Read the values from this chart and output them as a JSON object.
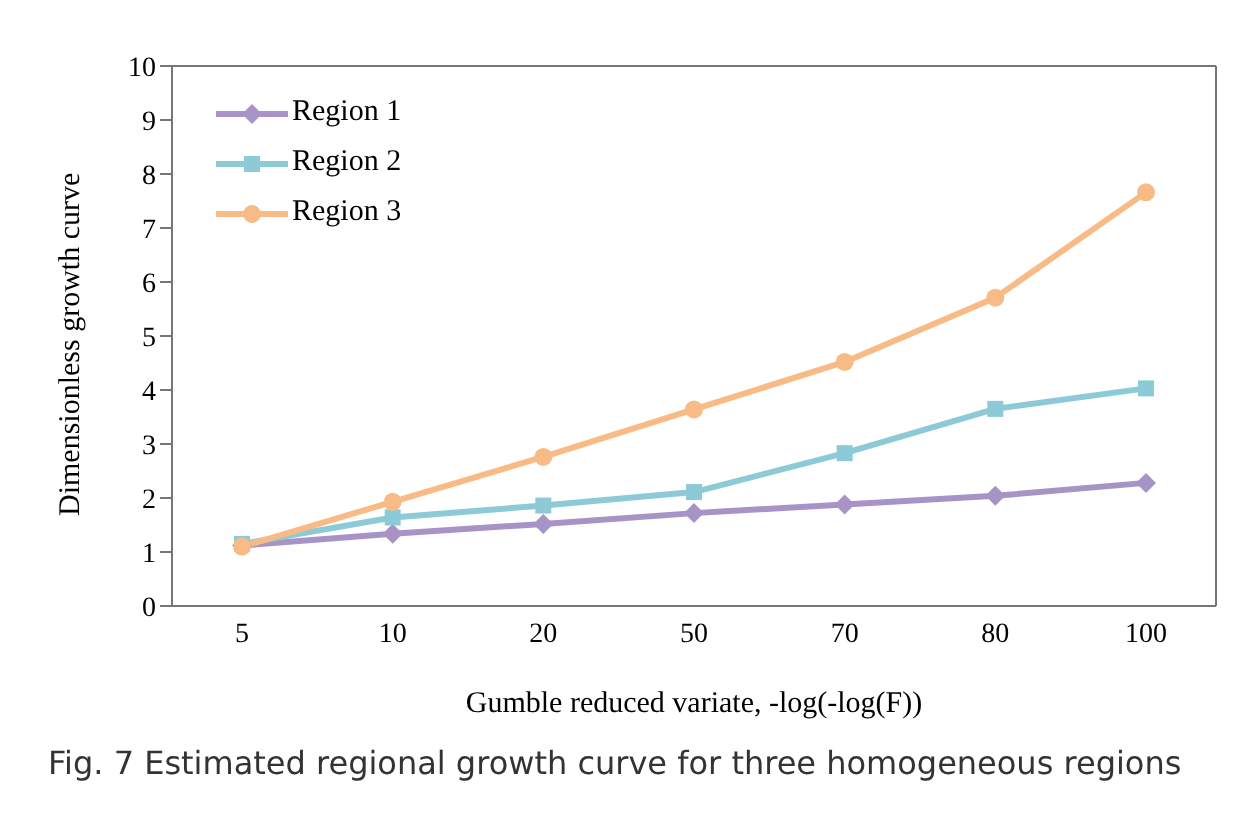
{
  "chart_data": {
    "type": "line",
    "xlabel": "Gumble reduced variate, -log(-log(F))",
    "ylabel": "Dimensionless growth curve",
    "categories": [
      "5",
      "10",
      "20",
      "50",
      "70",
      "80",
      "100"
    ],
    "series": [
      {
        "name": "Region 1",
        "color": "#a793c6",
        "marker": "diamond",
        "values": [
          1.12,
          1.34,
          1.52,
          1.72,
          1.88,
          2.04,
          2.28
        ]
      },
      {
        "name": "Region 2",
        "color": "#8dcad8",
        "marker": "square",
        "values": [
          1.15,
          1.64,
          1.86,
          2.11,
          2.83,
          3.65,
          4.03
        ]
      },
      {
        "name": "Region 3",
        "color": "#f8bb85",
        "marker": "circle",
        "values": [
          1.1,
          1.93,
          2.76,
          3.64,
          4.52,
          5.71,
          7.66
        ]
      }
    ],
    "ylim": [
      0,
      10
    ],
    "yticks": [
      0,
      1,
      2,
      3,
      4,
      5,
      6,
      7,
      8,
      9,
      10
    ],
    "grid": false,
    "legend": "top left",
    "annotations": [
      "Fig. 7 Estimated regional growth curve for three homogeneous regions"
    ]
  }
}
